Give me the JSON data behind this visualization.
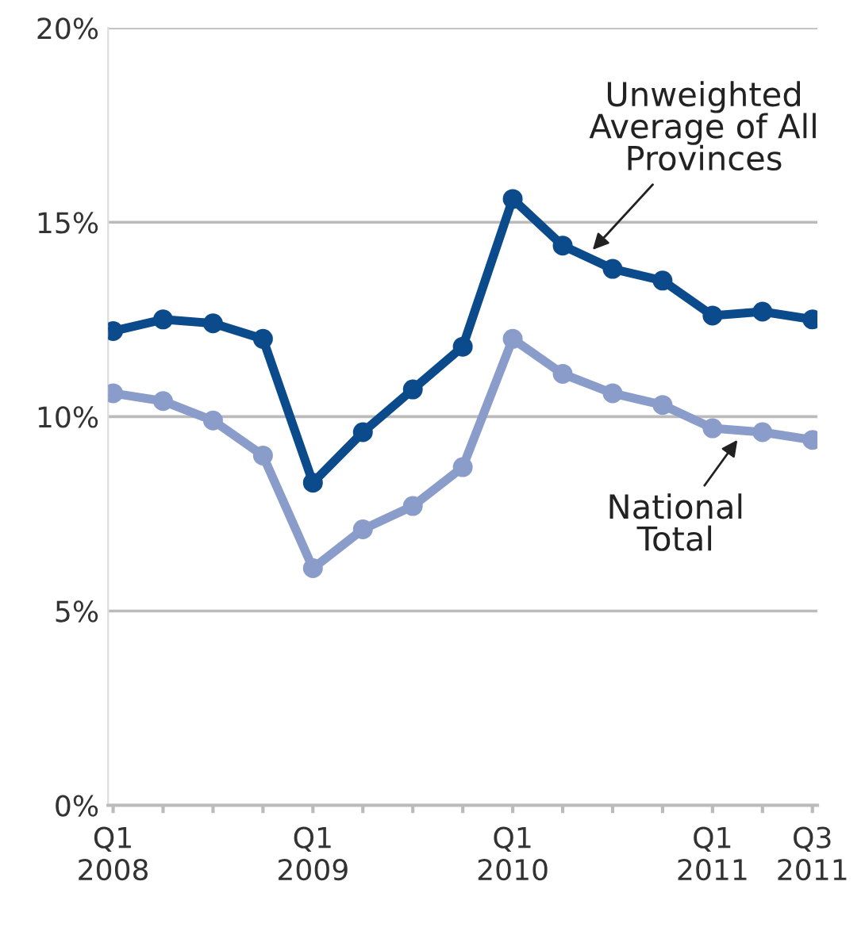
{
  "chart_data": {
    "type": "line",
    "categories": [
      "Q1\n2008",
      null,
      null,
      null,
      "Q1\n2009",
      null,
      null,
      null,
      "Q1\n2010",
      null,
      null,
      null,
      "Q1\n2011",
      null,
      "Q3\n2011"
    ],
    "series": [
      {
        "name": "Unweighted\nAverage of All\nProvinces",
        "color": "#0b4a8b",
        "values": [
          12.2,
          12.5,
          12.4,
          12.0,
          8.3,
          9.6,
          10.7,
          11.8,
          15.6,
          14.4,
          13.8,
          13.5,
          12.6,
          12.7,
          12.5
        ]
      },
      {
        "name": "National\nTotal",
        "color": "#8a9cc9",
        "values": [
          10.6,
          10.4,
          9.9,
          9.0,
          6.1,
          7.1,
          7.7,
          8.7,
          12.0,
          11.1,
          10.6,
          10.3,
          9.7,
          9.6,
          9.4
        ]
      }
    ],
    "ylim": [
      0,
      20
    ],
    "yticks": [
      {
        "value": 0,
        "label": "0%"
      },
      {
        "value": 5,
        "label": "5%"
      },
      {
        "value": 10,
        "label": "10%"
      },
      {
        "value": 15,
        "label": "15%"
      },
      {
        "value": 20,
        "label": "20%"
      }
    ],
    "grid": "y",
    "legend": false,
    "marker": "circle",
    "line_style": "solid"
  }
}
